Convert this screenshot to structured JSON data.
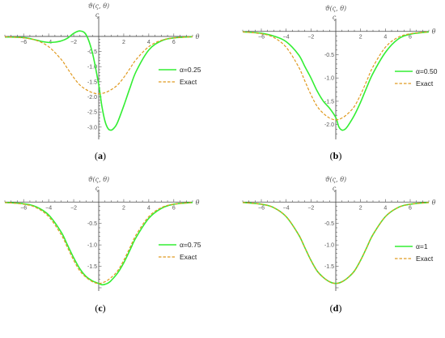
{
  "chart_data": [
    {
      "type": "line",
      "panel": "a",
      "caption_letter": "a",
      "xlabel": "θ",
      "ylabel": "ϑ(ς, θ)",
      "xlim": [
        -7.5,
        7.5
      ],
      "ylim": [
        -3.3,
        0.4
      ],
      "x_ticks": [
        -6,
        -4,
        -2,
        2,
        4,
        6
      ],
      "y_ticks": [
        -0.5,
        -1.0,
        -1.5,
        -2.0,
        -2.5,
        -3.0
      ],
      "y_tick_labels": [
        "-0.5",
        "-1.0",
        "-1.5",
        "-2.0",
        "-2.5",
        "-3.0"
      ],
      "legend_position": "right",
      "series": [
        {
          "name": "α=0.25",
          "color": "#33ee33",
          "style": "solid",
          "x": [
            -7.5,
            -6,
            -5,
            -4.5,
            -4,
            -3.5,
            -3,
            -2.5,
            -2,
            -1.5,
            -1,
            -0.5,
            0,
            0.25,
            0.5,
            0.75,
            1,
            1.25,
            1.5,
            2,
            2.5,
            3,
            4,
            5,
            6,
            7.5
          ],
          "y": [
            -0.02,
            -0.04,
            -0.12,
            -0.17,
            -0.2,
            -0.19,
            -0.15,
            -0.06,
            0.1,
            0.18,
            0.05,
            -0.55,
            -1.6,
            -2.3,
            -2.8,
            -3.05,
            -3.1,
            -3.02,
            -2.85,
            -2.3,
            -1.7,
            -1.15,
            -0.45,
            -0.15,
            -0.05,
            -0.01
          ]
        },
        {
          "name": "Exact",
          "color": "#e09a20",
          "style": "dashed",
          "x": [
            -7.5,
            -6,
            -5,
            -4,
            -3,
            -2.5,
            -2,
            -1.5,
            -1,
            -0.5,
            0,
            0.5,
            1,
            1.5,
            2,
            2.5,
            3,
            4,
            5,
            6,
            7.5
          ],
          "y": [
            -0.01,
            -0.05,
            -0.13,
            -0.34,
            -0.76,
            -1.06,
            -1.36,
            -1.61,
            -1.76,
            -1.86,
            -1.9,
            -1.86,
            -1.76,
            -1.61,
            -1.36,
            -1.06,
            -0.76,
            -0.34,
            -0.13,
            -0.05,
            -0.01
          ]
        }
      ]
    },
    {
      "type": "line",
      "panel": "b",
      "caption_letter": "b",
      "xlabel": "θ",
      "ylabel": "ϑ(ς, θ)",
      "xlim": [
        -7.5,
        7.5
      ],
      "ylim": [
        -2.25,
        0.1
      ],
      "x_ticks": [
        -6,
        -4,
        -2,
        2,
        4,
        6
      ],
      "y_ticks": [
        -0.5,
        -1.0,
        -1.5,
        -2.0
      ],
      "y_tick_labels": [
        "-0.5",
        "-1.0",
        "-1.5",
        "-2.0"
      ],
      "legend_position": "right",
      "series": [
        {
          "name": "α=0.50",
          "color": "#33ee33",
          "style": "solid",
          "x": [
            -7.5,
            -6,
            -5,
            -4,
            -3,
            -2.5,
            -2,
            -1.5,
            -1,
            -0.5,
            0,
            0.25,
            0.5,
            0.75,
            1,
            1.5,
            2,
            2.5,
            3,
            4,
            5,
            6,
            7.5
          ],
          "y": [
            -0.01,
            -0.04,
            -0.1,
            -0.22,
            -0.5,
            -0.75,
            -1.0,
            -1.28,
            -1.5,
            -1.65,
            -1.85,
            -2.05,
            -2.12,
            -2.1,
            -2.02,
            -1.8,
            -1.52,
            -1.2,
            -0.9,
            -0.45,
            -0.17,
            -0.06,
            -0.01
          ]
        },
        {
          "name": "Exact",
          "color": "#e09a20",
          "style": "dashed",
          "x": [
            -7.5,
            -6,
            -5,
            -4,
            -3,
            -2.5,
            -2,
            -1.5,
            -1,
            -0.5,
            0,
            0.5,
            1,
            1.5,
            2,
            2.5,
            3,
            4,
            5,
            6,
            7.5
          ],
          "y": [
            -0.01,
            -0.05,
            -0.13,
            -0.34,
            -0.76,
            -1.06,
            -1.36,
            -1.61,
            -1.76,
            -1.86,
            -1.9,
            -1.86,
            -1.76,
            -1.61,
            -1.36,
            -1.06,
            -0.76,
            -0.34,
            -0.13,
            -0.05,
            -0.01
          ]
        }
      ]
    },
    {
      "type": "line",
      "panel": "c",
      "caption_letter": "c",
      "xlabel": "θ",
      "ylabel": "ϑ(ς, θ)",
      "xlim": [
        -7.5,
        7.5
      ],
      "ylim": [
        -2.0,
        0.1
      ],
      "x_ticks": [
        -6,
        -4,
        -2,
        2,
        4,
        6
      ],
      "y_ticks": [
        -0.5,
        -1.0,
        -1.5
      ],
      "y_tick_labels": [
        "-0.5",
        "-1.0",
        "-1.5"
      ],
      "legend_position": "right",
      "series": [
        {
          "name": "α=0.75",
          "color": "#33ee33",
          "style": "solid",
          "x": [
            -7.5,
            -6,
            -5,
            -4,
            -3,
            -2.5,
            -2,
            -1.5,
            -1,
            -0.5,
            0,
            0.25,
            0.5,
            0.75,
            1,
            1.5,
            2,
            2.5,
            3,
            4,
            5,
            6,
            7.5
          ],
          "y": [
            -0.01,
            -0.04,
            -0.11,
            -0.3,
            -0.7,
            -1.0,
            -1.3,
            -1.56,
            -1.74,
            -1.84,
            -1.9,
            -1.93,
            -1.92,
            -1.89,
            -1.83,
            -1.66,
            -1.42,
            -1.12,
            -0.82,
            -0.38,
            -0.15,
            -0.05,
            -0.01
          ]
        },
        {
          "name": "Exact",
          "color": "#e09a20",
          "style": "dashed",
          "x": [
            -7.5,
            -6,
            -5,
            -4,
            -3,
            -2.5,
            -2,
            -1.5,
            -1,
            -0.5,
            0,
            0.5,
            1,
            1.5,
            2,
            2.5,
            3,
            4,
            5,
            6,
            7.5
          ],
          "y": [
            -0.01,
            -0.05,
            -0.13,
            -0.34,
            -0.76,
            -1.06,
            -1.36,
            -1.61,
            -1.76,
            -1.86,
            -1.9,
            -1.86,
            -1.76,
            -1.61,
            -1.36,
            -1.06,
            -0.76,
            -0.34,
            -0.13,
            -0.05,
            -0.01
          ]
        }
      ]
    },
    {
      "type": "line",
      "panel": "d",
      "caption_letter": "d",
      "xlabel": "θ",
      "ylabel": "ϑ(ς, θ)",
      "xlim": [
        -7.5,
        7.5
      ],
      "ylim": [
        -2.0,
        0.1
      ],
      "x_ticks": [
        -6,
        -4,
        -2,
        2,
        4,
        6
      ],
      "y_ticks": [
        -0.5,
        -1.0,
        -1.5
      ],
      "y_tick_labels": [
        "-0.5",
        "-1.0",
        "-1.5"
      ],
      "legend_position": "right",
      "series": [
        {
          "name": "α=1",
          "color": "#33ee33",
          "style": "solid",
          "x": [
            -7.5,
            -6,
            -5,
            -4,
            -3,
            -2.5,
            -2,
            -1.5,
            -1,
            -0.5,
            0,
            0.5,
            1,
            1.5,
            2,
            2.5,
            3,
            4,
            5,
            6,
            7.5
          ],
          "y": [
            -0.01,
            -0.05,
            -0.13,
            -0.34,
            -0.76,
            -1.06,
            -1.36,
            -1.61,
            -1.76,
            -1.86,
            -1.9,
            -1.86,
            -1.76,
            -1.61,
            -1.36,
            -1.06,
            -0.76,
            -0.34,
            -0.13,
            -0.05,
            -0.01
          ]
        },
        {
          "name": "Exact",
          "color": "#e09a20",
          "style": "dashed",
          "x": [
            -7.5,
            -6,
            -5,
            -4,
            -3,
            -2.5,
            -2,
            -1.5,
            -1,
            -0.5,
            0,
            0.5,
            1,
            1.5,
            2,
            2.5,
            3,
            4,
            5,
            6,
            7.5
          ],
          "y": [
            -0.01,
            -0.05,
            -0.13,
            -0.34,
            -0.76,
            -1.06,
            -1.36,
            -1.61,
            -1.76,
            -1.86,
            -1.9,
            -1.86,
            -1.76,
            -1.61,
            -1.36,
            -1.06,
            -0.76,
            -0.34,
            -0.13,
            -0.05,
            -0.01
          ]
        }
      ]
    }
  ]
}
